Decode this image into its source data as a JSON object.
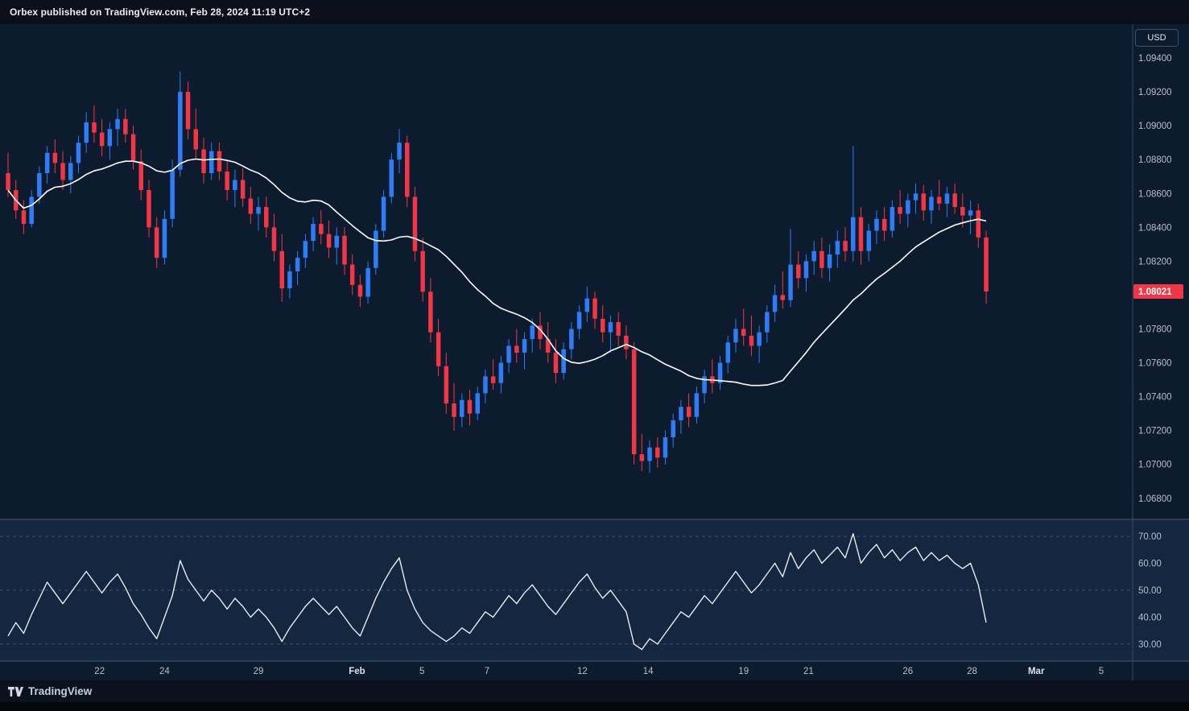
{
  "header": {
    "attribution": "Orbex published on TradingView.com, Feb 28, 2024 11:19 UTC+2"
  },
  "footer": {
    "brand": "TradingView"
  },
  "price_axis": {
    "currency_button": "USD",
    "ticks": [
      "1.09400",
      "1.09200",
      "1.09000",
      "1.08800",
      "1.08600",
      "1.08400",
      "1.08200",
      "1.07800",
      "1.07600",
      "1.07400",
      "1.07200",
      "1.07000",
      "1.06800"
    ],
    "last_price_label": "1.08021"
  },
  "rsi_axis": {
    "ticks": [
      "70.00",
      "60.00",
      "50.00",
      "40.00",
      "30.00"
    ]
  },
  "time_axis": {
    "ticks": [
      {
        "label": "22",
        "i": 11.7,
        "month": false
      },
      {
        "label": "24",
        "i": 20,
        "month": false
      },
      {
        "label": "29",
        "i": 32,
        "month": false
      },
      {
        "label": "Feb",
        "i": 44.6,
        "month": true
      },
      {
        "label": "5",
        "i": 52.9,
        "month": false
      },
      {
        "label": "7",
        "i": 61.2,
        "month": false
      },
      {
        "label": "12",
        "i": 73.4,
        "month": false
      },
      {
        "label": "14",
        "i": 81.8,
        "month": false
      },
      {
        "label": "19",
        "i": 94,
        "month": false
      },
      {
        "label": "21",
        "i": 102.3,
        "month": false
      },
      {
        "label": "26",
        "i": 115,
        "month": false
      },
      {
        "label": "28",
        "i": 123.2,
        "month": false
      },
      {
        "label": "Mar",
        "i": 131.4,
        "month": true
      },
      {
        "label": "5",
        "i": 139.7,
        "month": false
      }
    ]
  },
  "chart_data": {
    "type": "candlestick",
    "last_price": 1.08021,
    "price_pane": {
      "domain": [
        1.0668,
        1.096
      ],
      "overlay_line": {
        "label": "moving-average",
        "period": 20
      },
      "candles": [
        [
          1.0872,
          1.0884,
          1.0858,
          1.0862
        ],
        [
          1.0862,
          1.0868,
          1.0845,
          1.085
        ],
        [
          1.085,
          1.0856,
          1.0836,
          1.0842
        ],
        [
          1.0842,
          1.0862,
          1.084,
          1.0858
        ],
        [
          1.0858,
          1.0876,
          1.0854,
          1.0872
        ],
        [
          1.0872,
          1.0888,
          1.0866,
          1.0884
        ],
        [
          1.0884,
          1.0892,
          1.0872,
          1.0878
        ],
        [
          1.0878,
          1.0885,
          1.0862,
          1.0868
        ],
        [
          1.0868,
          1.0882,
          1.086,
          1.0878
        ],
        [
          1.0878,
          1.0894,
          1.0872,
          1.089
        ],
        [
          1.089,
          1.0908,
          1.0884,
          1.0902
        ],
        [
          1.0902,
          1.0912,
          1.089,
          1.0896
        ],
        [
          1.0896,
          1.0904,
          1.0882,
          1.0888
        ],
        [
          1.0888,
          1.0902,
          1.088,
          1.0898
        ],
        [
          1.0898,
          1.091,
          1.0888,
          1.0904
        ],
        [
          1.0904,
          1.091,
          1.089,
          1.0895
        ],
        [
          1.0895,
          1.09,
          1.0874,
          1.0879
        ],
        [
          1.0879,
          1.0886,
          1.0856,
          1.0862
        ],
        [
          1.0862,
          1.0868,
          1.0834,
          1.084
        ],
        [
          1.084,
          1.0846,
          1.0816,
          1.0822
        ],
        [
          1.0822,
          1.085,
          1.0818,
          1.0845
        ],
        [
          1.0845,
          1.088,
          1.084,
          1.0874
        ],
        [
          1.0874,
          1.0932,
          1.087,
          1.092
        ],
        [
          1.092,
          1.0926,
          1.0892,
          1.0898
        ],
        [
          1.0898,
          1.091,
          1.088,
          1.0886
        ],
        [
          1.0886,
          1.0893,
          1.0866,
          1.0872
        ],
        [
          1.0872,
          1.089,
          1.0868,
          1.0885
        ],
        [
          1.0885,
          1.089,
          1.0868,
          1.0873
        ],
        [
          1.0873,
          1.088,
          1.0856,
          1.0862
        ],
        [
          1.0862,
          1.0874,
          1.0852,
          1.0868
        ],
        [
          1.0868,
          1.0875,
          1.0852,
          1.0857
        ],
        [
          1.0857,
          1.0864,
          1.0842,
          1.0848
        ],
        [
          1.0848,
          1.0858,
          1.0838,
          1.0852
        ],
        [
          1.0852,
          1.0858,
          1.0834,
          1.084
        ],
        [
          1.084,
          1.0848,
          1.082,
          1.0826
        ],
        [
          1.0826,
          1.0836,
          1.0796,
          1.0804
        ],
        [
          1.0804,
          1.0818,
          1.0798,
          1.0814
        ],
        [
          1.0814,
          1.0826,
          1.0806,
          1.0822
        ],
        [
          1.0822,
          1.0836,
          1.0816,
          1.0832
        ],
        [
          1.0832,
          1.0846,
          1.0826,
          1.0842
        ],
        [
          1.0842,
          1.085,
          1.083,
          1.0836
        ],
        [
          1.0836,
          1.0844,
          1.0822,
          1.0828
        ],
        [
          1.0828,
          1.084,
          1.0818,
          1.0835
        ],
        [
          1.0835,
          1.084,
          1.0812,
          1.0818
        ],
        [
          1.0818,
          1.0824,
          1.08,
          1.0806
        ],
        [
          1.0806,
          1.0812,
          1.0793,
          1.0799
        ],
        [
          1.0799,
          1.082,
          1.0795,
          1.0816
        ],
        [
          1.0816,
          1.0842,
          1.0812,
          1.0838
        ],
        [
          1.0838,
          1.0862,
          1.0834,
          1.0858
        ],
        [
          1.0858,
          1.0884,
          1.0854,
          1.088
        ],
        [
          1.088,
          1.0898,
          1.0872,
          1.089
        ],
        [
          1.089,
          1.0894,
          1.0852,
          1.0858
        ],
        [
          1.0858,
          1.0864,
          1.082,
          1.0826
        ],
        [
          1.0826,
          1.0834,
          1.0796,
          1.0802
        ],
        [
          1.0802,
          1.081,
          1.0772,
          1.0778
        ],
        [
          1.0778,
          1.0786,
          1.0752,
          1.0758
        ],
        [
          1.0758,
          1.0766,
          1.073,
          1.0736
        ],
        [
          1.0736,
          1.0748,
          1.072,
          1.0728
        ],
        [
          1.0728,
          1.0742,
          1.0722,
          1.0738
        ],
        [
          1.0738,
          1.0744,
          1.0723,
          1.073
        ],
        [
          1.073,
          1.0746,
          1.0726,
          1.0742
        ],
        [
          1.0742,
          1.0756,
          1.0736,
          1.0752
        ],
        [
          1.0752,
          1.0762,
          1.0744,
          1.0748
        ],
        [
          1.0748,
          1.0764,
          1.0742,
          1.076
        ],
        [
          1.076,
          1.0774,
          1.0754,
          1.077
        ],
        [
          1.077,
          1.078,
          1.076,
          1.0766
        ],
        [
          1.0766,
          1.0778,
          1.0756,
          1.0774
        ],
        [
          1.0774,
          1.0786,
          1.0766,
          1.0782
        ],
        [
          1.0782,
          1.079,
          1.0768,
          1.0774
        ],
        [
          1.0774,
          1.0784,
          1.076,
          1.0766
        ],
        [
          1.0766,
          1.0774,
          1.0748,
          1.0754
        ],
        [
          1.0754,
          1.0772,
          1.075,
          1.0768
        ],
        [
          1.0768,
          1.0784,
          1.0762,
          1.078
        ],
        [
          1.078,
          1.0794,
          1.0774,
          1.079
        ],
        [
          1.079,
          1.0805,
          1.0784,
          1.0798
        ],
        [
          1.0798,
          1.0802,
          1.078,
          1.0786
        ],
        [
          1.0786,
          1.0794,
          1.0772,
          1.0778
        ],
        [
          1.0778,
          1.0788,
          1.0766,
          1.0784
        ],
        [
          1.0784,
          1.079,
          1.077,
          1.0776
        ],
        [
          1.0776,
          1.0782,
          1.0762,
          1.0768
        ],
        [
          1.0768,
          1.0772,
          1.07,
          1.0706
        ],
        [
          1.0706,
          1.0718,
          1.0696,
          1.0702
        ],
        [
          1.0702,
          1.0714,
          1.0695,
          1.071
        ],
        [
          1.071,
          1.0716,
          1.0698,
          1.0704
        ],
        [
          1.0704,
          1.072,
          1.07,
          1.0716
        ],
        [
          1.0716,
          1.073,
          1.071,
          1.0726
        ],
        [
          1.0726,
          1.0738,
          1.0718,
          1.0734
        ],
        [
          1.0734,
          1.0742,
          1.0722,
          1.0728
        ],
        [
          1.0728,
          1.0746,
          1.0724,
          1.0742
        ],
        [
          1.0742,
          1.0756,
          1.0736,
          1.0752
        ],
        [
          1.0752,
          1.0762,
          1.0742,
          1.0748
        ],
        [
          1.0748,
          1.0764,
          1.0744,
          1.076
        ],
        [
          1.076,
          1.0776,
          1.0754,
          1.0772
        ],
        [
          1.0772,
          1.0786,
          1.0766,
          1.078
        ],
        [
          1.078,
          1.0792,
          1.077,
          1.0776
        ],
        [
          1.0776,
          1.0788,
          1.0764,
          1.077
        ],
        [
          1.077,
          1.0782,
          1.076,
          1.0778
        ],
        [
          1.0778,
          1.0794,
          1.0772,
          1.079
        ],
        [
          1.079,
          1.0806,
          1.0784,
          1.08
        ],
        [
          1.08,
          1.0814,
          1.0792,
          1.0797
        ],
        [
          1.0797,
          1.0839,
          1.0793,
          1.0818
        ],
        [
          1.0818,
          1.0826,
          1.0804,
          1.081
        ],
        [
          1.081,
          1.0824,
          1.0802,
          1.082
        ],
        [
          1.082,
          1.0832,
          1.0812,
          1.0826
        ],
        [
          1.0826,
          1.0834,
          1.081,
          1.0816
        ],
        [
          1.0816,
          1.083,
          1.0808,
          1.0824
        ],
        [
          1.0824,
          1.0838,
          1.0816,
          1.0832
        ],
        [
          1.0832,
          1.084,
          1.082,
          1.0826
        ],
        [
          1.0826,
          1.0888,
          1.082,
          1.0846
        ],
        [
          1.0846,
          1.0852,
          1.0818,
          1.0826
        ],
        [
          1.0826,
          1.0842,
          1.082,
          1.0838
        ],
        [
          1.0838,
          1.085,
          1.083,
          1.0845
        ],
        [
          1.0845,
          1.0852,
          1.0832,
          1.0838
        ],
        [
          1.0838,
          1.0856,
          1.0834,
          1.0852
        ],
        [
          1.0852,
          1.0862,
          1.0842,
          1.0848
        ],
        [
          1.0848,
          1.086,
          1.084,
          1.0856
        ],
        [
          1.0856,
          1.0866,
          1.0848,
          1.086
        ],
        [
          1.086,
          1.0865,
          1.0844,
          1.085
        ],
        [
          1.085,
          1.0862,
          1.0842,
          1.0858
        ],
        [
          1.0858,
          1.0868,
          1.085,
          1.0854
        ],
        [
          1.0854,
          1.0864,
          1.0846,
          1.086
        ],
        [
          1.086,
          1.0866,
          1.0848,
          1.0852
        ],
        [
          1.0852,
          1.086,
          1.084,
          1.0847
        ],
        [
          1.0847,
          1.0856,
          1.0836,
          1.085
        ],
        [
          1.085,
          1.0854,
          1.0828,
          1.0834
        ],
        [
          1.0834,
          1.0838,
          1.0795,
          1.08021
        ]
      ]
    },
    "indicator_pane": {
      "type": "line",
      "label": "rsi",
      "domain": [
        24,
        76
      ],
      "dashed_levels": [
        70,
        50,
        30
      ],
      "values": [
        33,
        38,
        34,
        41,
        47,
        53,
        49,
        45,
        49,
        53,
        57,
        53,
        49,
        53,
        56,
        51,
        45,
        41,
        36,
        32,
        40,
        48,
        61,
        54,
        50,
        46,
        50,
        47,
        43,
        47,
        44,
        40,
        43,
        40,
        36,
        31,
        36,
        40,
        44,
        47,
        44,
        41,
        44,
        40,
        36,
        33,
        40,
        47,
        53,
        58,
        62,
        50,
        43,
        38,
        35,
        33,
        31,
        33,
        36,
        34,
        38,
        42,
        40,
        44,
        48,
        45,
        49,
        52,
        48,
        44,
        41,
        45,
        49,
        53,
        56,
        51,
        47,
        50,
        46,
        42,
        30,
        28,
        32,
        30,
        34,
        38,
        42,
        40,
        44,
        48,
        45,
        49,
        53,
        57,
        53,
        49,
        52,
        56,
        60,
        55,
        64,
        58,
        62,
        65,
        60,
        63,
        66,
        62,
        71,
        60,
        64,
        67,
        62,
        65,
        61,
        64,
        66,
        61,
        64,
        61,
        63,
        60,
        58,
        60,
        52,
        38
      ]
    },
    "colors": {
      "background": "#0d1b2f",
      "indicator_background": "#152640",
      "up": "#2f7cf6",
      "down": "#f23645",
      "ma": "#ffffff",
      "rsi": "#e9ebf0",
      "gridline": "#6b7690",
      "separator": "#4e5d77",
      "axis_line": "#3a4a63",
      "axis_text": "#b8bfcc",
      "axis_text_strong": "#dde2ea",
      "badge": "#f23645"
    }
  }
}
